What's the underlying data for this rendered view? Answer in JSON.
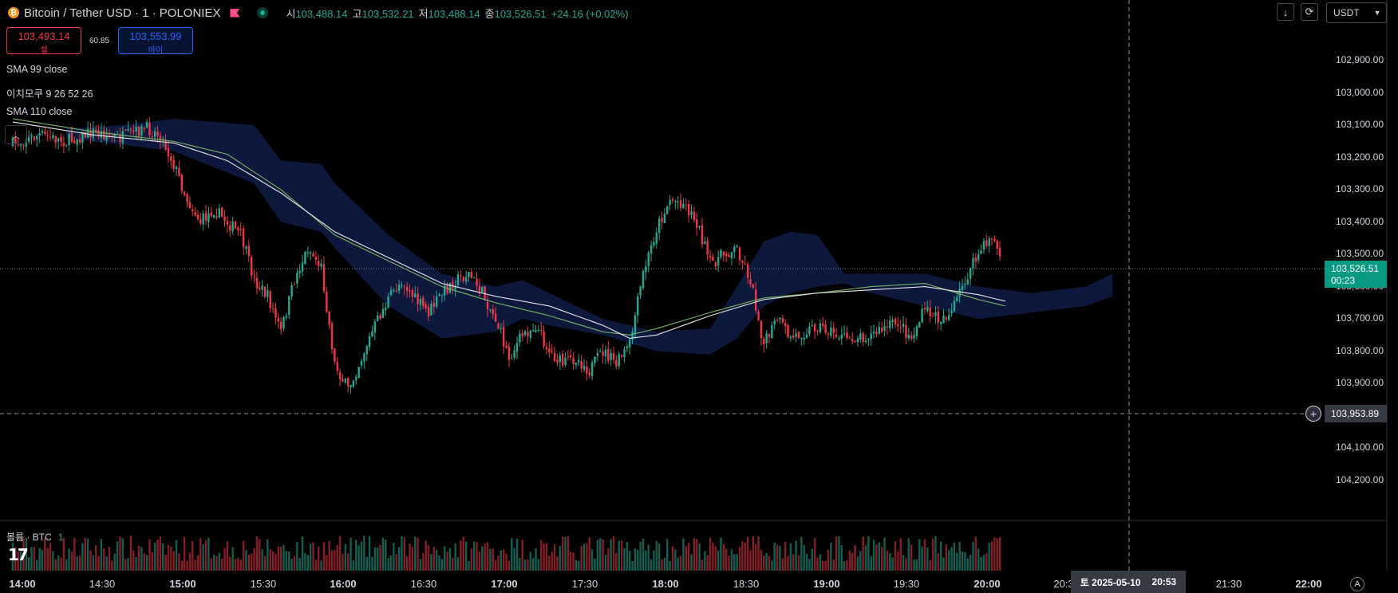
{
  "header": {
    "symbol_title": "Bitcoin / Tether USD · 1 · POLONIEX",
    "ohlc": [
      {
        "key": "시",
        "value": "103,488.14"
      },
      {
        "key": "고",
        "value": "103,532.21"
      },
      {
        "key": "저",
        "value": "103,488.14"
      },
      {
        "key": "종",
        "value": "103,526.51"
      }
    ],
    "change": "+24.16 (+0.02%)",
    "currency": "USDT"
  },
  "trade": {
    "sell_price": "103,493.14",
    "sell_label": "셀",
    "spread": "60.85",
    "buy_price": "103,553.99",
    "buy_label": "바이"
  },
  "indicators": {
    "sma99": "SMA 99 close",
    "ichimoku": "이치모쿠 9 26 52 26",
    "sma110": "SMA 110 close"
  },
  "price_axis": {
    "labels": [
      "102,900.00",
      "103,000.00",
      "103,100.00",
      "103,200.00",
      "103,300.00",
      "103,400.00",
      "103,500.00",
      "103,600.00",
      "103,700.00",
      "103,800.00",
      "103,900.00",
      "104,000.00",
      "104,100.00",
      "104,200.00"
    ],
    "last_price": "103,526.51",
    "countdown": "00:23",
    "crosshair_price": "103,953.89"
  },
  "time_axis": {
    "labels": [
      {
        "t": "14:00",
        "major": true
      },
      {
        "t": "14:30",
        "major": false
      },
      {
        "t": "15:00",
        "major": true
      },
      {
        "t": "15:30",
        "major": false
      },
      {
        "t": "16:00",
        "major": true
      },
      {
        "t": "16:30",
        "major": false
      },
      {
        "t": "17:00",
        "major": true
      },
      {
        "t": "17:30",
        "major": false
      },
      {
        "t": "18:00",
        "major": true
      },
      {
        "t": "18:30",
        "major": false
      },
      {
        "t": "19:00",
        "major": true
      },
      {
        "t": "19:30",
        "major": false
      },
      {
        "t": "20:00",
        "major": true
      },
      {
        "t": "20:3",
        "major": false
      },
      {
        "t": "21:30",
        "major": false
      },
      {
        "t": "22:00",
        "major": true
      }
    ],
    "crosshair_date": "토 2025-05-10",
    "crosshair_time": "20:53"
  },
  "volume": {
    "label": "볼륨 · BTC",
    "value": "1"
  },
  "colors": {
    "up": "#22ab94",
    "down": "#f23645",
    "cloud": "#0e1a3f",
    "sma99": "#e8e8e8",
    "sma110": "#79b861"
  },
  "chart_data": {
    "type": "candlestick",
    "title": "",
    "xlabel": "",
    "ylabel": "",
    "ylim": [
      104263,
      102850
    ],
    "x_range": [
      "14:00",
      "22:00"
    ],
    "grid": false,
    "close_anchors": [
      [
        "14:00",
        103180
      ],
      [
        "14:10",
        103150
      ],
      [
        "14:20",
        103170
      ],
      [
        "14:30",
        103140
      ],
      [
        "14:40",
        103160
      ],
      [
        "14:50",
        103130
      ],
      [
        "14:55",
        103150
      ],
      [
        "15:00",
        103240
      ],
      [
        "15:05",
        103350
      ],
      [
        "15:10",
        103420
      ],
      [
        "15:15",
        103380
      ],
      [
        "15:20",
        103420
      ],
      [
        "15:25",
        103460
      ],
      [
        "15:30",
        103600
      ],
      [
        "15:35",
        103650
      ],
      [
        "15:40",
        103760
      ],
      [
        "15:45",
        103600
      ],
      [
        "15:50",
        103500
      ],
      [
        "15:55",
        103560
      ],
      [
        "16:00",
        103860
      ],
      [
        "16:05",
        103940
      ],
      [
        "16:10",
        103840
      ],
      [
        "16:15",
        103740
      ],
      [
        "16:20",
        103660
      ],
      [
        "16:25",
        103600
      ],
      [
        "16:30",
        103660
      ],
      [
        "16:35",
        103700
      ],
      [
        "16:40",
        103640
      ],
      [
        "16:45",
        103600
      ],
      [
        "16:50",
        103580
      ],
      [
        "16:55",
        103640
      ],
      [
        "17:00",
        103720
      ],
      [
        "17:05",
        103840
      ],
      [
        "17:10",
        103770
      ],
      [
        "17:15",
        103740
      ],
      [
        "17:20",
        103820
      ],
      [
        "17:25",
        103860
      ],
      [
        "17:30",
        103840
      ],
      [
        "17:35",
        103880
      ],
      [
        "17:40",
        103820
      ],
      [
        "17:45",
        103860
      ],
      [
        "17:50",
        103800
      ],
      [
        "17:55",
        103580
      ],
      [
        "18:00",
        103440
      ],
      [
        "18:05",
        103350
      ],
      [
        "18:10",
        103360
      ],
      [
        "18:15",
        103420
      ],
      [
        "18:20",
        103550
      ],
      [
        "18:25",
        103520
      ],
      [
        "18:30",
        103500
      ],
      [
        "18:35",
        103600
      ],
      [
        "18:40",
        103800
      ],
      [
        "18:45",
        103720
      ],
      [
        "18:50",
        103780
      ],
      [
        "18:55",
        103760
      ],
      [
        "19:00",
        103740
      ],
      [
        "19:10",
        103780
      ],
      [
        "19:20",
        103770
      ],
      [
        "19:30",
        103730
      ],
      [
        "19:35",
        103780
      ],
      [
        "19:40",
        103690
      ],
      [
        "19:45",
        103720
      ],
      [
        "19:50",
        103700
      ],
      [
        "19:55",
        103600
      ],
      [
        "20:00",
        103520
      ],
      [
        "20:05",
        103460
      ],
      [
        "20:08",
        103526.51
      ]
    ],
    "sma99_anchors": [
      [
        "14:00",
        103110
      ],
      [
        "14:30",
        103150
      ],
      [
        "15:00",
        103175
      ],
      [
        "15:20",
        103230
      ],
      [
        "15:40",
        103330
      ],
      [
        "16:00",
        103450
      ],
      [
        "16:20",
        103530
      ],
      [
        "16:40",
        103610
      ],
      [
        "17:00",
        103650
      ],
      [
        "17:20",
        103680
      ],
      [
        "17:40",
        103740
      ],
      [
        "17:50",
        103780
      ],
      [
        "18:00",
        103770
      ],
      [
        "18:20",
        103710
      ],
      [
        "18:40",
        103660
      ],
      [
        "19:00",
        103640
      ],
      [
        "19:20",
        103630
      ],
      [
        "19:40",
        103620
      ],
      [
        "20:00",
        103645
      ],
      [
        "20:10",
        103665
      ]
    ],
    "sma110_anchors": [
      [
        "14:00",
        103100
      ],
      [
        "14:30",
        103140
      ],
      [
        "15:00",
        103170
      ],
      [
        "15:20",
        103210
      ],
      [
        "15:40",
        103320
      ],
      [
        "16:00",
        103460
      ],
      [
        "16:20",
        103540
      ],
      [
        "16:40",
        103620
      ],
      [
        "17:00",
        103670
      ],
      [
        "17:20",
        103710
      ],
      [
        "17:40",
        103760
      ],
      [
        "17:50",
        103770
      ],
      [
        "18:00",
        103750
      ],
      [
        "18:20",
        103700
      ],
      [
        "18:40",
        103655
      ],
      [
        "19:00",
        103640
      ],
      [
        "19:20",
        103620
      ],
      [
        "19:40",
        103610
      ],
      [
        "20:00",
        103660
      ],
      [
        "20:10",
        103680
      ]
    ],
    "cloud_upper": [
      [
        "14:20",
        103130
      ],
      [
        "14:40",
        103120
      ],
      [
        "15:00",
        103100
      ],
      [
        "15:15",
        103110
      ],
      [
        "15:30",
        103120
      ],
      [
        "15:40",
        103230
      ],
      [
        "15:55",
        103240
      ],
      [
        "16:00",
        103300
      ],
      [
        "16:20",
        103460
      ],
      [
        "16:40",
        103580
      ],
      [
        "17:00",
        103620
      ],
      [
        "17:10",
        103600
      ],
      [
        "17:20",
        103640
      ],
      [
        "17:40",
        103720
      ],
      [
        "18:00",
        103760
      ],
      [
        "18:20",
        103750
      ],
      [
        "18:30",
        103620
      ],
      [
        "18:40",
        103480
      ],
      [
        "18:50",
        103450
      ],
      [
        "19:00",
        103460
      ],
      [
        "19:10",
        103580
      ],
      [
        "19:20",
        103580
      ],
      [
        "19:40",
        103580
      ],
      [
        "20:00",
        103620
      ],
      [
        "20:20",
        103640
      ],
      [
        "20:40",
        103620
      ],
      [
        "20:50",
        103580
      ]
    ],
    "cloud_lower": [
      [
        "14:20",
        103160
      ],
      [
        "14:40",
        103180
      ],
      [
        "15:00",
        103200
      ],
      [
        "15:15",
        103250
      ],
      [
        "15:30",
        103300
      ],
      [
        "15:40",
        103420
      ],
      [
        "15:55",
        103450
      ],
      [
        "16:00",
        103500
      ],
      [
        "16:20",
        103680
      ],
      [
        "16:40",
        103780
      ],
      [
        "17:00",
        103760
      ],
      [
        "17:10",
        103720
      ],
      [
        "17:20",
        103740
      ],
      [
        "17:40",
        103770
      ],
      [
        "18:00",
        103820
      ],
      [
        "18:20",
        103830
      ],
      [
        "18:30",
        103780
      ],
      [
        "18:40",
        103680
      ],
      [
        "18:50",
        103640
      ],
      [
        "19:00",
        103620
      ],
      [
        "19:10",
        103610
      ],
      [
        "19:20",
        103640
      ],
      [
        "19:40",
        103680
      ],
      [
        "20:00",
        103720
      ],
      [
        "20:20",
        103700
      ],
      [
        "20:40",
        103680
      ],
      [
        "20:50",
        103650
      ]
    ]
  }
}
